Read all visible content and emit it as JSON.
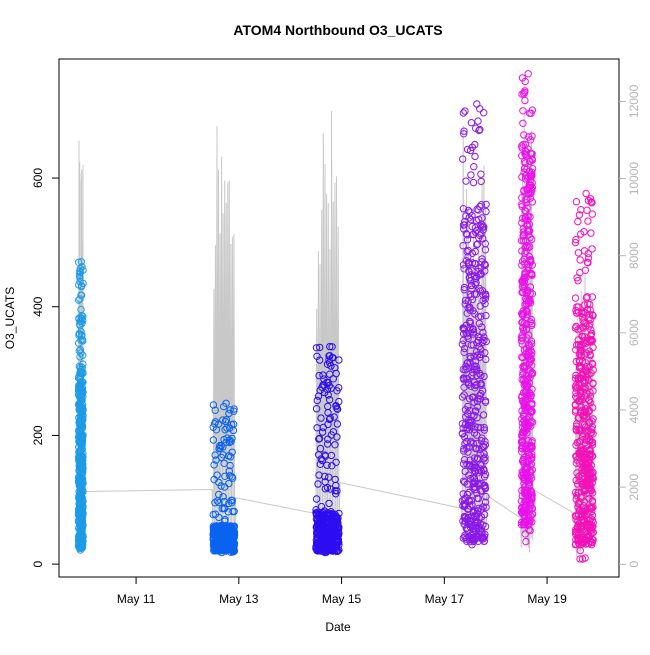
{
  "chart_data": {
    "type": "scatter",
    "title": "ATOM4 Northbound O3_UCATS",
    "xlabel": "Date",
    "ylabel": "O3_UCATS",
    "x_ticks": [
      "May 11",
      "May 13",
      "May 15",
      "May 17",
      "May 19"
    ],
    "x_tick_values": [
      11,
      13,
      15,
      17,
      19
    ],
    "xlim": [
      9.5,
      20.4
    ],
    "y_left": {
      "ticks": [
        "0",
        "200",
        "400",
        "600"
      ],
      "tick_values": [
        0,
        200,
        400,
        600
      ],
      "ylim": [
        -20,
        785
      ]
    },
    "y_right": {
      "ticks": [
        "0",
        "2000",
        "4000",
        "6000",
        "8000",
        "10000",
        "12000"
      ],
      "tick_values": [
        0,
        2000,
        4000,
        6000,
        8000,
        10000,
        12000
      ],
      "ylim": [
        -330,
        13100
      ],
      "color": "#b5b5b5"
    },
    "grid": false,
    "legend": "none",
    "series": [
      {
        "color": "#1e9be6",
        "day_range": [
          9.88,
          9.97
        ],
        "o3_range": [
          22,
          470
        ],
        "o3_core": [
          25,
          300
        ],
        "alt_peak": 11000
      },
      {
        "color": "#0b63f0",
        "day_range": [
          12.5,
          12.92
        ],
        "o3_range": [
          18,
          250
        ],
        "o3_core": [
          20,
          60
        ],
        "alt_peak": 11500
      },
      {
        "color": "#2d0ef0",
        "day_range": [
          14.5,
          14.95
        ],
        "o3_range": [
          18,
          338
        ],
        "o3_core": [
          20,
          80
        ],
        "alt_peak": 12000
      },
      {
        "color": "#8a1ae8",
        "day_range": [
          17.35,
          17.82
        ],
        "o3_range": [
          30,
          715
        ],
        "o3_core": [
          35,
          560
        ],
        "alt_peak": 11400
      },
      {
        "color": "#ea12ea",
        "day_range": [
          18.5,
          18.72
        ],
        "o3_range": [
          35,
          762
        ],
        "o3_core": [
          60,
          650
        ],
        "alt_peak": 12200
      },
      {
        "color": "#f411b8",
        "day_range": [
          19.55,
          19.9
        ],
        "o3_range": [
          8,
          576
        ],
        "o3_core": [
          30,
          400
        ],
        "alt_peak": 7900
      }
    ]
  }
}
